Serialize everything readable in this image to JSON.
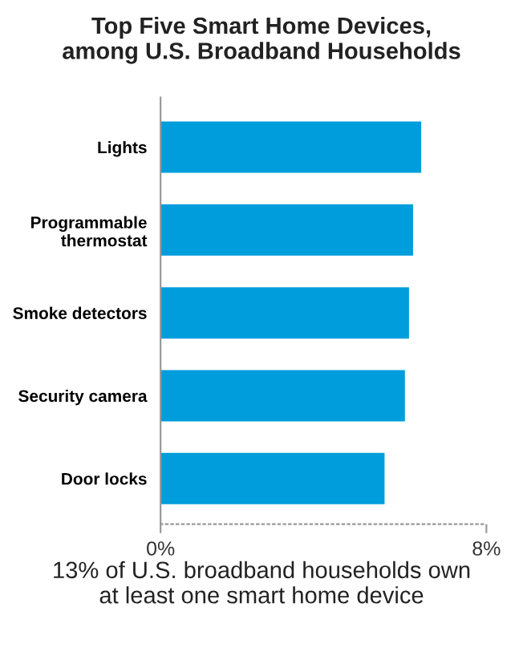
{
  "chart_data": {
    "type": "bar",
    "orientation": "horizontal",
    "title": "Top Five Smart Home Devices,\namong U.S. Broadband Households",
    "categories": [
      "Lights",
      "Programmable\nthermostat",
      "Smoke detectors",
      "Security camera",
      "Door locks"
    ],
    "values": [
      6.4,
      6.2,
      6.1,
      6.0,
      5.5
    ],
    "color": "#009ddc",
    "xlim": [
      0,
      8
    ],
    "xticks": [
      {
        "value": 0,
        "label": "0%"
      },
      {
        "value": 8,
        "label": "8%"
      }
    ],
    "grid": false,
    "annotations": [
      "13% of U.S. broadband households own\nat least one smart home device"
    ]
  }
}
